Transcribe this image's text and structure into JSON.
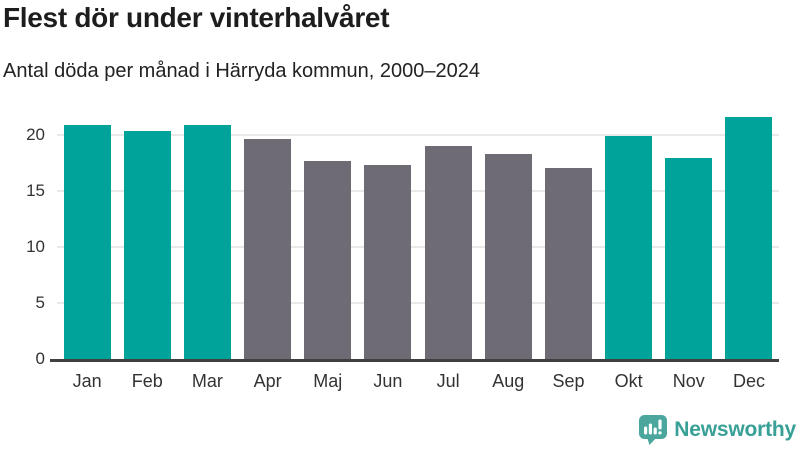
{
  "header": {
    "title": "Flest dör under vinterhalvåret",
    "subtitle": "Antal döda per månad i Härryda kommun, 2000–2024"
  },
  "chart_data": {
    "type": "bar",
    "title": "Flest dör under vinterhalvåret",
    "subtitle": "Antal döda per månad i Härryda kommun, 2000–2024",
    "categories": [
      "Jan",
      "Feb",
      "Mar",
      "Apr",
      "Maj",
      "Jun",
      "Jul",
      "Aug",
      "Sep",
      "Okt",
      "Nov",
      "Dec"
    ],
    "values": [
      20.9,
      20.4,
      20.9,
      19.7,
      17.7,
      17.3,
      19.0,
      18.3,
      17.1,
      19.9,
      18.0,
      21.6
    ],
    "bar_colors": [
      "#00a39a",
      "#00a39a",
      "#00a39a",
      "#6e6b74",
      "#6e6b74",
      "#6e6b74",
      "#6e6b74",
      "#6e6b74",
      "#6e6b74",
      "#00a39a",
      "#00a39a",
      "#00a39a"
    ],
    "palette": {
      "winter_months": "#00a39a",
      "summer_months": "#6e6b74"
    },
    "xlabel": "",
    "ylabel": "",
    "ylim": [
      0,
      21.8
    ],
    "yticks": [
      0,
      5,
      10,
      15,
      20
    ],
    "grid": true,
    "legend": false
  },
  "footer": {
    "brand": "Newsworthy",
    "brand_color": "#38a096",
    "icon": "bar-chart-speech-bubble-icon",
    "icon_color": "#4ba69d"
  }
}
